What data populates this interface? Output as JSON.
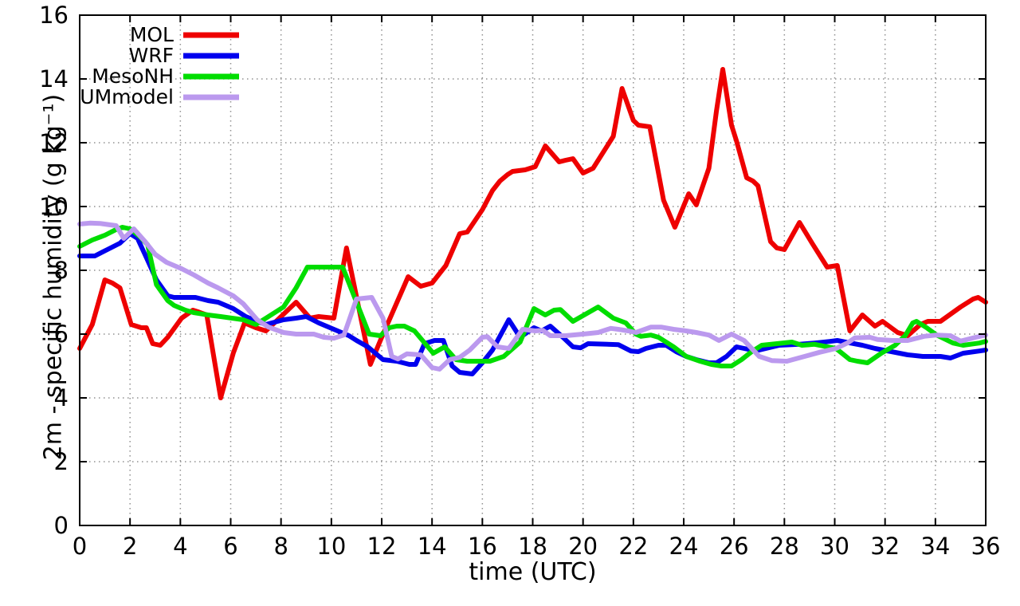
{
  "chart_data": {
    "type": "line",
    "title": "",
    "xlabel": "time (UTC)",
    "ylabel": "2m - specific humidity (g kg⁻¹)",
    "xlim": [
      0,
      36
    ],
    "ylim": [
      0,
      16
    ],
    "xtick_step": 2,
    "ytick_step": 2,
    "grid": true,
    "grid_style": "dotted",
    "legend_position": "top-left-inside",
    "background_color": "#ffffff",
    "axis_color": "#000000",
    "grid_color": "#909090",
    "series": [
      {
        "name": "MOL",
        "color": "#ee0000",
        "points": [
          [
            0,
            5.55
          ],
          [
            0.5,
            6.3
          ],
          [
            1,
            7.7
          ],
          [
            1.3,
            7.6
          ],
          [
            1.6,
            7.45
          ],
          [
            2.05,
            6.3
          ],
          [
            2.45,
            6.2
          ],
          [
            2.65,
            6.2
          ],
          [
            2.9,
            5.7
          ],
          [
            3.2,
            5.65
          ],
          [
            3.5,
            5.9
          ],
          [
            4.05,
            6.5
          ],
          [
            4.5,
            6.75
          ],
          [
            4.7,
            6.7
          ],
          [
            5.05,
            6.6
          ],
          [
            5.6,
            4.0
          ],
          [
            6.1,
            5.4
          ],
          [
            6.55,
            6.35
          ],
          [
            7,
            6.2
          ],
          [
            7.4,
            6.1
          ],
          [
            8,
            6.55
          ],
          [
            8.6,
            7.0
          ],
          [
            9.15,
            6.5
          ],
          [
            9.5,
            6.55
          ],
          [
            10.1,
            6.5
          ],
          [
            10.6,
            8.7
          ],
          [
            11.55,
            5.05
          ],
          [
            12,
            5.9
          ],
          [
            13.05,
            7.8
          ],
          [
            13.55,
            7.5
          ],
          [
            14,
            7.6
          ],
          [
            14.55,
            8.15
          ],
          [
            15.1,
            9.15
          ],
          [
            15.4,
            9.2
          ],
          [
            16,
            9.9
          ],
          [
            16.4,
            10.5
          ],
          [
            16.7,
            10.8
          ],
          [
            17,
            11.0
          ],
          [
            17.2,
            11.1
          ],
          [
            17.7,
            11.15
          ],
          [
            18.1,
            11.25
          ],
          [
            18.5,
            11.9
          ],
          [
            19.05,
            11.4
          ],
          [
            19.3,
            11.45
          ],
          [
            19.6,
            11.5
          ],
          [
            20,
            11.05
          ],
          [
            20.4,
            11.2
          ],
          [
            21.2,
            12.2
          ],
          [
            21.55,
            13.7
          ],
          [
            22,
            12.7
          ],
          [
            22.2,
            12.55
          ],
          [
            22.65,
            12.5
          ],
          [
            23.2,
            10.2
          ],
          [
            23.65,
            9.35
          ],
          [
            24.2,
            10.4
          ],
          [
            24.5,
            10.05
          ],
          [
            25,
            11.2
          ],
          [
            25.3,
            13.0
          ],
          [
            25.55,
            14.3
          ],
          [
            25.9,
            12.55
          ],
          [
            26.1,
            12.05
          ],
          [
            26.5,
            10.9
          ],
          [
            26.75,
            10.8
          ],
          [
            26.95,
            10.65
          ],
          [
            27.45,
            8.9
          ],
          [
            27.7,
            8.7
          ],
          [
            28,
            8.65
          ],
          [
            28.6,
            9.5
          ],
          [
            29.1,
            8.85
          ],
          [
            29.5,
            8.35
          ],
          [
            29.7,
            8.1
          ],
          [
            30.1,
            8.15
          ],
          [
            30.6,
            6.1
          ],
          [
            31.1,
            6.6
          ],
          [
            31.6,
            6.25
          ],
          [
            31.9,
            6.4
          ],
          [
            32.5,
            6.05
          ],
          [
            32.9,
            5.95
          ],
          [
            33.4,
            6.3
          ],
          [
            33.7,
            6.4
          ],
          [
            34.2,
            6.4
          ],
          [
            35,
            6.85
          ],
          [
            35.5,
            7.1
          ],
          [
            35.7,
            7.15
          ],
          [
            36,
            7.0
          ]
        ]
      },
      {
        "name": "WRF",
        "color": "#0000ee",
        "points": [
          [
            0,
            8.45
          ],
          [
            0.6,
            8.45
          ],
          [
            1.1,
            8.65
          ],
          [
            1.6,
            8.85
          ],
          [
            2.0,
            9.15
          ],
          [
            2.3,
            9.0
          ],
          [
            2.65,
            8.4
          ],
          [
            3.05,
            7.7
          ],
          [
            3.5,
            7.2
          ],
          [
            3.75,
            7.15
          ],
          [
            4.6,
            7.15
          ],
          [
            5.1,
            7.05
          ],
          [
            5.5,
            7.0
          ],
          [
            6.1,
            6.8
          ],
          [
            6.6,
            6.55
          ],
          [
            7.05,
            6.4
          ],
          [
            7.4,
            6.3
          ],
          [
            8.1,
            6.45
          ],
          [
            8.6,
            6.5
          ],
          [
            9,
            6.55
          ],
          [
            9.5,
            6.35
          ],
          [
            10.1,
            6.15
          ],
          [
            10.7,
            5.95
          ],
          [
            11,
            5.8
          ],
          [
            11.45,
            5.6
          ],
          [
            12.05,
            5.2
          ],
          [
            12.6,
            5.15
          ],
          [
            13.1,
            5.05
          ],
          [
            13.35,
            5.05
          ],
          [
            13.7,
            5.7
          ],
          [
            14.1,
            5.8
          ],
          [
            14.45,
            5.8
          ],
          [
            14.8,
            5.0
          ],
          [
            15.1,
            4.8
          ],
          [
            15.6,
            4.75
          ],
          [
            16,
            5.1
          ],
          [
            16.4,
            5.5
          ],
          [
            17.05,
            6.45
          ],
          [
            17.5,
            5.9
          ],
          [
            18.05,
            6.2
          ],
          [
            18.35,
            6.1
          ],
          [
            18.7,
            6.25
          ],
          [
            19.2,
            5.9
          ],
          [
            19.6,
            5.6
          ],
          [
            19.9,
            5.57
          ],
          [
            20.2,
            5.7
          ],
          [
            21.4,
            5.67
          ],
          [
            21.9,
            5.47
          ],
          [
            22.2,
            5.45
          ],
          [
            22.5,
            5.55
          ],
          [
            23,
            5.65
          ],
          [
            23.3,
            5.65
          ],
          [
            23.7,
            5.45
          ],
          [
            24.1,
            5.3
          ],
          [
            24.5,
            5.2
          ],
          [
            25,
            5.1
          ],
          [
            25.3,
            5.1
          ],
          [
            25.7,
            5.3
          ],
          [
            26.1,
            5.6
          ],
          [
            26.7,
            5.5
          ],
          [
            27,
            5.5
          ],
          [
            27.8,
            5.65
          ],
          [
            28.6,
            5.68
          ],
          [
            29.2,
            5.72
          ],
          [
            29.8,
            5.77
          ],
          [
            30.1,
            5.8
          ],
          [
            31.1,
            5.65
          ],
          [
            31.6,
            5.55
          ],
          [
            32.25,
            5.45
          ],
          [
            32.9,
            5.35
          ],
          [
            33.5,
            5.3
          ],
          [
            34.2,
            5.3
          ],
          [
            34.6,
            5.25
          ],
          [
            35.1,
            5.4
          ],
          [
            35.75,
            5.47
          ],
          [
            36,
            5.5
          ]
        ]
      },
      {
        "name": "MesoNH",
        "color": "#00dd00",
        "points": [
          [
            0,
            8.75
          ],
          [
            0.5,
            8.95
          ],
          [
            1,
            9.1
          ],
          [
            1.45,
            9.28
          ],
          [
            1.7,
            9.35
          ],
          [
            2,
            9.3
          ],
          [
            2.4,
            9.05
          ],
          [
            2.7,
            8.8
          ],
          [
            3.05,
            7.55
          ],
          [
            3.5,
            7.05
          ],
          [
            3.75,
            6.9
          ],
          [
            4.2,
            6.75
          ],
          [
            4.55,
            6.67
          ],
          [
            5.1,
            6.6
          ],
          [
            5.6,
            6.55
          ],
          [
            6.05,
            6.5
          ],
          [
            6.5,
            6.45
          ],
          [
            7,
            6.3
          ],
          [
            7.5,
            6.55
          ],
          [
            8.1,
            6.85
          ],
          [
            8.6,
            7.45
          ],
          [
            9.05,
            8.1
          ],
          [
            10.45,
            8.1
          ],
          [
            11,
            7.0
          ],
          [
            11.5,
            6.0
          ],
          [
            11.95,
            5.95
          ],
          [
            12.3,
            6.2
          ],
          [
            12.6,
            6.25
          ],
          [
            12.9,
            6.25
          ],
          [
            13.3,
            6.1
          ],
          [
            14.05,
            5.4
          ],
          [
            14.5,
            5.6
          ],
          [
            14.95,
            5.2
          ],
          [
            15.4,
            5.15
          ],
          [
            16.3,
            5.15
          ],
          [
            16.85,
            5.3
          ],
          [
            17.5,
            5.75
          ],
          [
            18.05,
            6.8
          ],
          [
            18.5,
            6.6
          ],
          [
            18.85,
            6.75
          ],
          [
            19.1,
            6.77
          ],
          [
            19.6,
            6.4
          ],
          [
            20.6,
            6.85
          ],
          [
            21.2,
            6.5
          ],
          [
            21.7,
            6.35
          ],
          [
            22.1,
            6.0
          ],
          [
            22.3,
            5.93
          ],
          [
            22.7,
            5.97
          ],
          [
            23,
            5.9
          ],
          [
            23.6,
            5.6
          ],
          [
            24.1,
            5.3
          ],
          [
            24.65,
            5.15
          ],
          [
            25.1,
            5.05
          ],
          [
            25.5,
            5.0
          ],
          [
            25.9,
            5.0
          ],
          [
            26.3,
            5.2
          ],
          [
            26.7,
            5.45
          ],
          [
            27.1,
            5.65
          ],
          [
            27.7,
            5.7
          ],
          [
            28.3,
            5.75
          ],
          [
            28.7,
            5.65
          ],
          [
            29.2,
            5.68
          ],
          [
            30.05,
            5.55
          ],
          [
            30.6,
            5.2
          ],
          [
            30.9,
            5.15
          ],
          [
            31.3,
            5.1
          ],
          [
            31.85,
            5.4
          ],
          [
            32.4,
            5.65
          ],
          [
            32.8,
            5.95
          ],
          [
            33.1,
            6.35
          ],
          [
            33.25,
            6.4
          ],
          [
            33.65,
            6.2
          ],
          [
            34.05,
            5.97
          ],
          [
            34.7,
            5.72
          ],
          [
            35.1,
            5.65
          ],
          [
            35.75,
            5.72
          ],
          [
            36,
            5.77
          ]
        ]
      },
      {
        "name": "UMmodel",
        "color": "#bb99ee",
        "points": [
          [
            0,
            9.45
          ],
          [
            0.4,
            9.48
          ],
          [
            0.8,
            9.47
          ],
          [
            1.45,
            9.4
          ],
          [
            1.75,
            9.0
          ],
          [
            2.15,
            9.3
          ],
          [
            2.6,
            8.9
          ],
          [
            3,
            8.5
          ],
          [
            3.45,
            8.25
          ],
          [
            4.05,
            8.05
          ],
          [
            4.55,
            7.85
          ],
          [
            5.1,
            7.6
          ],
          [
            5.5,
            7.45
          ],
          [
            6.1,
            7.2
          ],
          [
            6.5,
            6.95
          ],
          [
            7.05,
            6.45
          ],
          [
            7.5,
            6.22
          ],
          [
            8.1,
            6.05
          ],
          [
            8.6,
            6.0
          ],
          [
            9.3,
            6.0
          ],
          [
            9.7,
            5.9
          ],
          [
            10.1,
            5.87
          ],
          [
            10.5,
            5.97
          ],
          [
            10.8,
            6.65
          ],
          [
            11,
            7.1
          ],
          [
            11.6,
            7.15
          ],
          [
            12.05,
            6.5
          ],
          [
            12.4,
            5.3
          ],
          [
            12.65,
            5.22
          ],
          [
            13,
            5.38
          ],
          [
            13.55,
            5.35
          ],
          [
            14,
            4.95
          ],
          [
            14.3,
            4.9
          ],
          [
            14.7,
            5.2
          ],
          [
            15.1,
            5.27
          ],
          [
            15.5,
            5.5
          ],
          [
            16,
            5.9
          ],
          [
            16.2,
            5.92
          ],
          [
            16.6,
            5.6
          ],
          [
            17.05,
            5.55
          ],
          [
            17.6,
            6.15
          ],
          [
            18.1,
            6.1
          ],
          [
            18.4,
            6.12
          ],
          [
            18.7,
            5.95
          ],
          [
            19.3,
            5.95
          ],
          [
            20,
            6.0
          ],
          [
            20.6,
            6.05
          ],
          [
            21.1,
            6.18
          ],
          [
            21.4,
            6.15
          ],
          [
            21.8,
            6.1
          ],
          [
            22.1,
            6.05
          ],
          [
            22.7,
            6.22
          ],
          [
            23.1,
            6.22
          ],
          [
            23.6,
            6.15
          ],
          [
            24.1,
            6.1
          ],
          [
            24.5,
            6.05
          ],
          [
            25,
            5.97
          ],
          [
            25.4,
            5.8
          ],
          [
            25.9,
            6.0
          ],
          [
            26.4,
            5.8
          ],
          [
            27,
            5.3
          ],
          [
            27.5,
            5.17
          ],
          [
            28.1,
            5.15
          ],
          [
            28.8,
            5.3
          ],
          [
            29.4,
            5.43
          ],
          [
            30.05,
            5.55
          ],
          [
            30.5,
            5.72
          ],
          [
            30.8,
            5.88
          ],
          [
            31.4,
            5.9
          ],
          [
            31.7,
            5.83
          ],
          [
            32.3,
            5.8
          ],
          [
            32.9,
            5.8
          ],
          [
            33.55,
            5.93
          ],
          [
            34.05,
            5.97
          ],
          [
            34.6,
            5.95
          ],
          [
            35,
            5.78
          ],
          [
            35.6,
            5.9
          ],
          [
            36,
            5.97
          ]
        ]
      }
    ],
    "x_tick_labels": [
      "0",
      "2",
      "4",
      "6",
      "8",
      "10",
      "12",
      "14",
      "16",
      "18",
      "20",
      "22",
      "24",
      "26",
      "28",
      "30",
      "32",
      "34",
      "36"
    ],
    "y_tick_labels": [
      "0",
      "2",
      "4",
      "6",
      "8",
      "10",
      "12",
      "14",
      "16"
    ]
  }
}
